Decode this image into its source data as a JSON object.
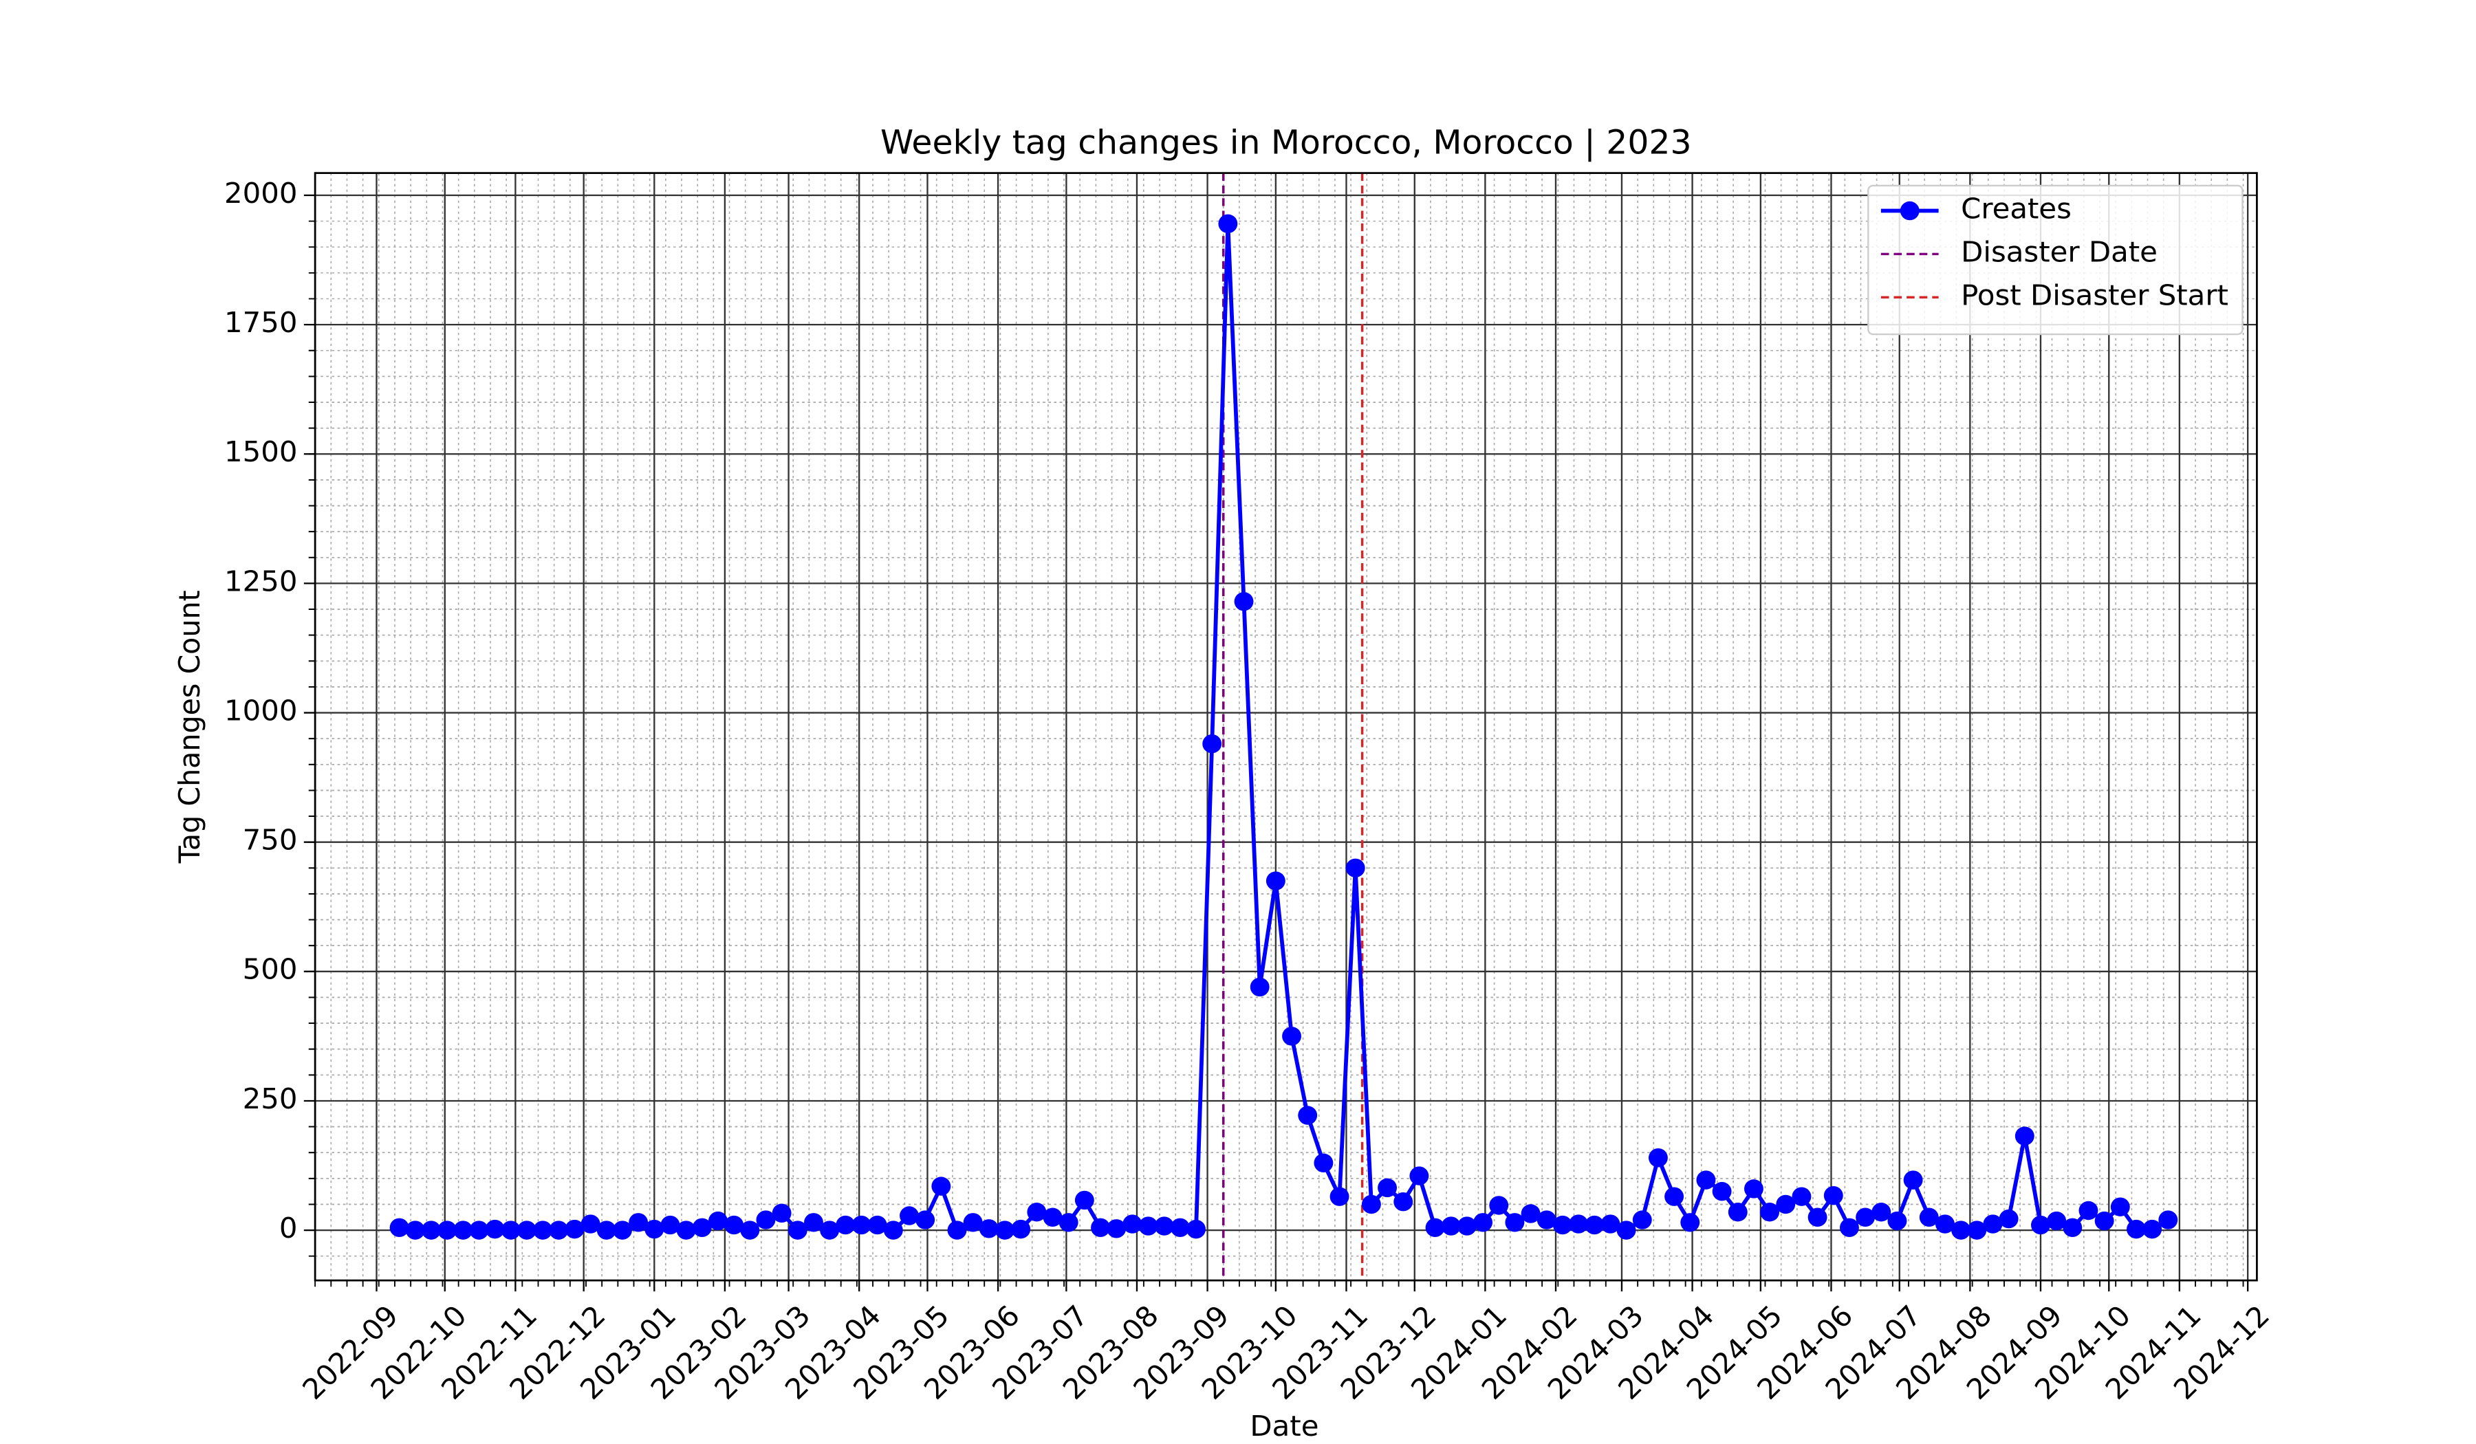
{
  "chart_data": {
    "type": "line",
    "title": "Weekly tag changes in Morocco, Morocco | 2023",
    "xlabel": "Date",
    "ylabel": "Tag Changes Count",
    "x": [
      "2022-09-11",
      "2022-09-18",
      "2022-09-25",
      "2022-10-02",
      "2022-10-09",
      "2022-10-16",
      "2022-10-23",
      "2022-10-30",
      "2022-11-06",
      "2022-11-13",
      "2022-11-20",
      "2022-11-27",
      "2022-12-04",
      "2022-12-11",
      "2022-12-18",
      "2022-12-25",
      "2023-01-01",
      "2023-01-08",
      "2023-01-15",
      "2023-01-22",
      "2023-01-29",
      "2023-02-05",
      "2023-02-12",
      "2023-02-19",
      "2023-02-26",
      "2023-03-05",
      "2023-03-12",
      "2023-03-19",
      "2023-03-26",
      "2023-04-02",
      "2023-04-09",
      "2023-04-16",
      "2023-04-23",
      "2023-04-30",
      "2023-05-07",
      "2023-05-14",
      "2023-05-21",
      "2023-05-28",
      "2023-06-04",
      "2023-06-11",
      "2023-06-18",
      "2023-06-25",
      "2023-07-02",
      "2023-07-09",
      "2023-07-16",
      "2023-07-23",
      "2023-07-30",
      "2023-08-06",
      "2023-08-13",
      "2023-08-20",
      "2023-08-27",
      "2023-09-03",
      "2023-09-10",
      "2023-09-17",
      "2023-09-24",
      "2023-10-01",
      "2023-10-08",
      "2023-10-15",
      "2023-10-22",
      "2023-10-29",
      "2023-11-05",
      "2023-11-12",
      "2023-11-19",
      "2023-11-26",
      "2023-12-03",
      "2023-12-10",
      "2023-12-17",
      "2023-12-24",
      "2023-12-31",
      "2024-01-07",
      "2024-01-14",
      "2024-01-21",
      "2024-01-28",
      "2024-02-04",
      "2024-02-11",
      "2024-02-18",
      "2024-02-25",
      "2024-03-03",
      "2024-03-10",
      "2024-03-17",
      "2024-03-24",
      "2024-03-31",
      "2024-04-07",
      "2024-04-14",
      "2024-04-21",
      "2024-04-28",
      "2024-05-05",
      "2024-05-12",
      "2024-05-19",
      "2024-05-26",
      "2024-06-02",
      "2024-06-09",
      "2024-06-16",
      "2024-06-23",
      "2024-06-30",
      "2024-07-07",
      "2024-07-14",
      "2024-07-21",
      "2024-07-28",
      "2024-08-04",
      "2024-08-11",
      "2024-08-18",
      "2024-08-25",
      "2024-09-01",
      "2024-09-08",
      "2024-09-15",
      "2024-09-22",
      "2024-09-29",
      "2024-10-06",
      "2024-10-13",
      "2024-10-20",
      "2024-10-27"
    ],
    "series": [
      {
        "name": "Creates",
        "color": "#0000ff",
        "values": [
          5,
          0,
          0,
          0,
          0,
          0,
          2,
          0,
          0,
          0,
          0,
          2,
          12,
          0,
          0,
          15,
          2,
          10,
          0,
          5,
          18,
          10,
          0,
          20,
          33,
          0,
          15,
          0,
          10,
          10,
          10,
          0,
          28,
          20,
          85,
          0,
          15,
          3,
          0,
          2,
          35,
          25,
          15,
          58,
          5,
          3,
          12,
          8,
          8,
          5,
          2,
          940,
          1945,
          1215,
          470,
          675,
          375,
          222,
          130,
          65,
          700,
          50,
          82,
          55,
          105,
          5,
          8,
          8,
          15,
          48,
          15,
          32,
          20,
          10,
          12,
          10,
          12,
          0,
          20,
          140,
          65,
          15,
          97,
          75,
          35,
          80,
          35,
          50,
          65,
          25,
          67,
          5,
          25,
          35,
          18,
          97,
          25,
          12,
          0,
          0,
          12,
          22,
          182,
          10,
          18,
          5,
          38,
          18,
          45,
          2,
          2,
          20
        ]
      }
    ],
    "vlines": [
      {
        "name": "Disaster Date",
        "x": "2023-09-08",
        "color": "#800080"
      },
      {
        "name": "Post Disaster Start",
        "x": "2023-11-08",
        "color": "#d62728"
      }
    ],
    "xlim": [
      "2022-08-05",
      "2024-12-05"
    ],
    "xticks": [
      "2022-09",
      "2022-10",
      "2022-11",
      "2022-12",
      "2023-01",
      "2023-02",
      "2023-03",
      "2023-04",
      "2023-05",
      "2023-06",
      "2023-07",
      "2023-08",
      "2023-09",
      "2023-10",
      "2023-11",
      "2023-12",
      "2024-01",
      "2024-02",
      "2024-03",
      "2024-04",
      "2024-05",
      "2024-06",
      "2024-07",
      "2024-08",
      "2024-09",
      "2024-10",
      "2024-11",
      "2024-12"
    ],
    "ylim": [
      -97,
      2043
    ],
    "yticks": [
      0,
      250,
      500,
      750,
      1000,
      1250,
      1500,
      1750,
      2000
    ],
    "grid": true,
    "legend": "upper right"
  }
}
